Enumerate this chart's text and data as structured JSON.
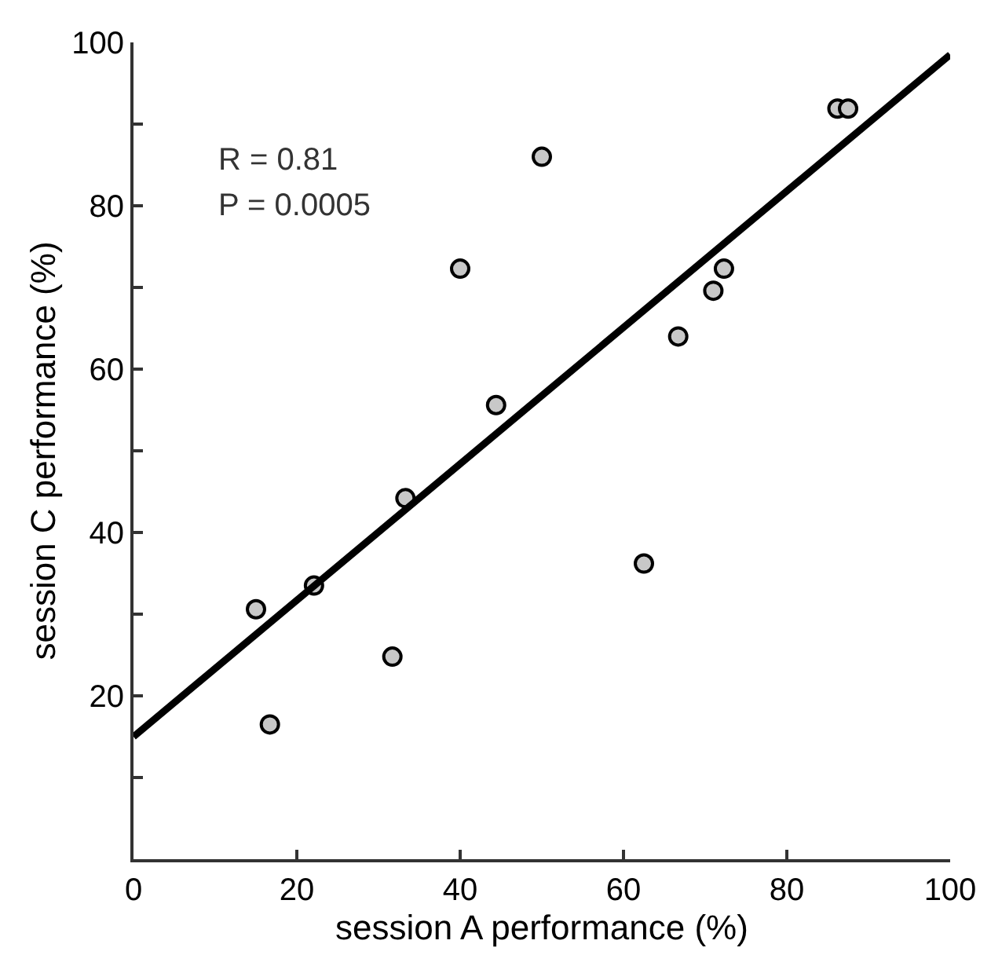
{
  "chart_data": {
    "type": "scatter",
    "xlabel": "session A performance (%)",
    "ylabel": "session C performance (%)",
    "annotations": [
      "R = 0.81",
      "P = 0.0005"
    ],
    "xlim": [
      0,
      100
    ],
    "ylim": [
      0,
      100
    ],
    "xticks": [
      0,
      20,
      40,
      60,
      80,
      100
    ],
    "yticks": [
      {
        "value": 10,
        "label": null
      },
      20,
      {
        "value": 30,
        "label": null
      },
      40,
      {
        "value": 50,
        "label": null
      },
      60,
      {
        "value": 70,
        "label": null
      },
      80,
      {
        "value": 90,
        "label": null
      },
      100
    ],
    "grid": false,
    "series": [
      {
        "marker": "circle",
        "color": "#c8c8c8",
        "x": [
          15,
          16.7,
          22.1,
          31.7,
          33.3,
          40,
          44.4,
          50,
          62.5,
          66.7,
          71,
          72.3,
          86.2,
          87.5
        ],
        "values": [
          30.6,
          16.5,
          33.5,
          24.8,
          44.2,
          72.3,
          55.6,
          86,
          36.2,
          64,
          69.6,
          72.3,
          91.9,
          91.9
        ]
      },
      {
        "type": "line",
        "color": "#000000",
        "line_style": "solid",
        "x": [
          0,
          100
        ],
        "values": [
          15,
          98.5
        ]
      }
    ]
  }
}
